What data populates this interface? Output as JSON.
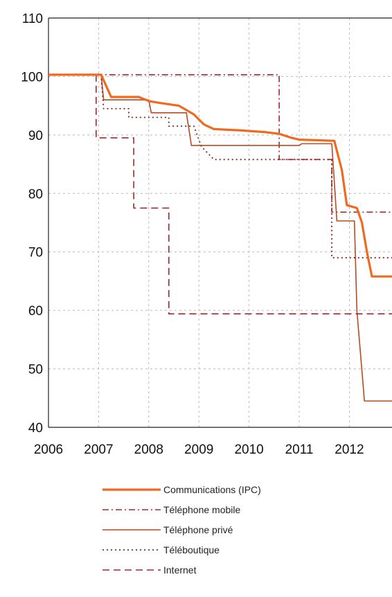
{
  "chart_data": {
    "type": "line",
    "title": "",
    "xlabel": "",
    "ylabel": "",
    "xlim": [
      2006,
      2012.85
    ],
    "ylim": [
      40,
      110
    ],
    "x_ticks": [
      "2006",
      "2007",
      "2008",
      "2009",
      "2010",
      "2011",
      "2012"
    ],
    "y_ticks": [
      "40",
      "50",
      "60",
      "70",
      "80",
      "90",
      "100",
      "110"
    ],
    "grid": true,
    "legend_position": "bottom",
    "series": [
      {
        "name": "Communications (IPC)",
        "color": "#ef6a1f",
        "style": "solid-thick",
        "points": [
          [
            2006,
            100.3
          ],
          [
            2007.05,
            100.3
          ],
          [
            2007.25,
            96.5
          ],
          [
            2007.8,
            96.5
          ],
          [
            2008.0,
            95.8
          ],
          [
            2008.2,
            95.5
          ],
          [
            2008.6,
            95.0
          ],
          [
            2008.9,
            93.5
          ],
          [
            2009.1,
            91.8
          ],
          [
            2009.3,
            91.0
          ],
          [
            2009.8,
            90.8
          ],
          [
            2010.3,
            90.5
          ],
          [
            2010.6,
            90.2
          ],
          [
            2010.85,
            89.5
          ],
          [
            2011.0,
            89.2
          ],
          [
            2011.7,
            89.0
          ],
          [
            2011.85,
            84.0
          ],
          [
            2011.95,
            78.0
          ],
          [
            2012.15,
            77.5
          ],
          [
            2012.25,
            75.0
          ],
          [
            2012.35,
            70.0
          ],
          [
            2012.45,
            65.8
          ],
          [
            2012.85,
            65.8
          ]
        ]
      },
      {
        "name": "Téléphone mobile",
        "color": "#9b2b2b",
        "style": "dashdot",
        "points": [
          [
            2006.95,
            100.3
          ],
          [
            2010.6,
            100.3
          ],
          [
            2010.6,
            85.8
          ],
          [
            2011.65,
            85.8
          ],
          [
            2011.65,
            76.8
          ],
          [
            2012.85,
            76.8
          ]
        ]
      },
      {
        "name": "Téléphone privé",
        "color": "#b84a20",
        "style": "solid",
        "points": [
          [
            2007.05,
            100.3
          ],
          [
            2007.1,
            96.0
          ],
          [
            2008.0,
            96.0
          ],
          [
            2008.05,
            93.8
          ],
          [
            2008.75,
            93.8
          ],
          [
            2008.85,
            88.2
          ],
          [
            2011.0,
            88.2
          ],
          [
            2011.05,
            88.5
          ],
          [
            2011.65,
            88.5
          ],
          [
            2011.75,
            75.3
          ],
          [
            2012.1,
            75.3
          ],
          [
            2012.15,
            60.0
          ],
          [
            2012.3,
            44.5
          ],
          [
            2012.85,
            44.5
          ]
        ]
      },
      {
        "name": "Téléboutique",
        "color": "#8b2222",
        "style": "dotted",
        "points": [
          [
            2007.05,
            100.3
          ],
          [
            2007.1,
            94.5
          ],
          [
            2007.6,
            94.5
          ],
          [
            2007.6,
            93.0
          ],
          [
            2008.4,
            93.0
          ],
          [
            2008.4,
            91.5
          ],
          [
            2008.9,
            91.5
          ],
          [
            2009.05,
            88.0
          ],
          [
            2009.3,
            85.8
          ],
          [
            2011.65,
            85.8
          ],
          [
            2011.65,
            69.0
          ],
          [
            2012.85,
            69.0
          ]
        ]
      },
      {
        "name": "Internet",
        "color": "#9b2b2b",
        "style": "dashed",
        "points": [
          [
            2006.95,
            100.3
          ],
          [
            2006.95,
            89.5
          ],
          [
            2007.7,
            89.5
          ],
          [
            2007.7,
            77.5
          ],
          [
            2008.4,
            77.5
          ],
          [
            2008.4,
            59.4
          ],
          [
            2012.85,
            59.4
          ]
        ]
      }
    ]
  }
}
